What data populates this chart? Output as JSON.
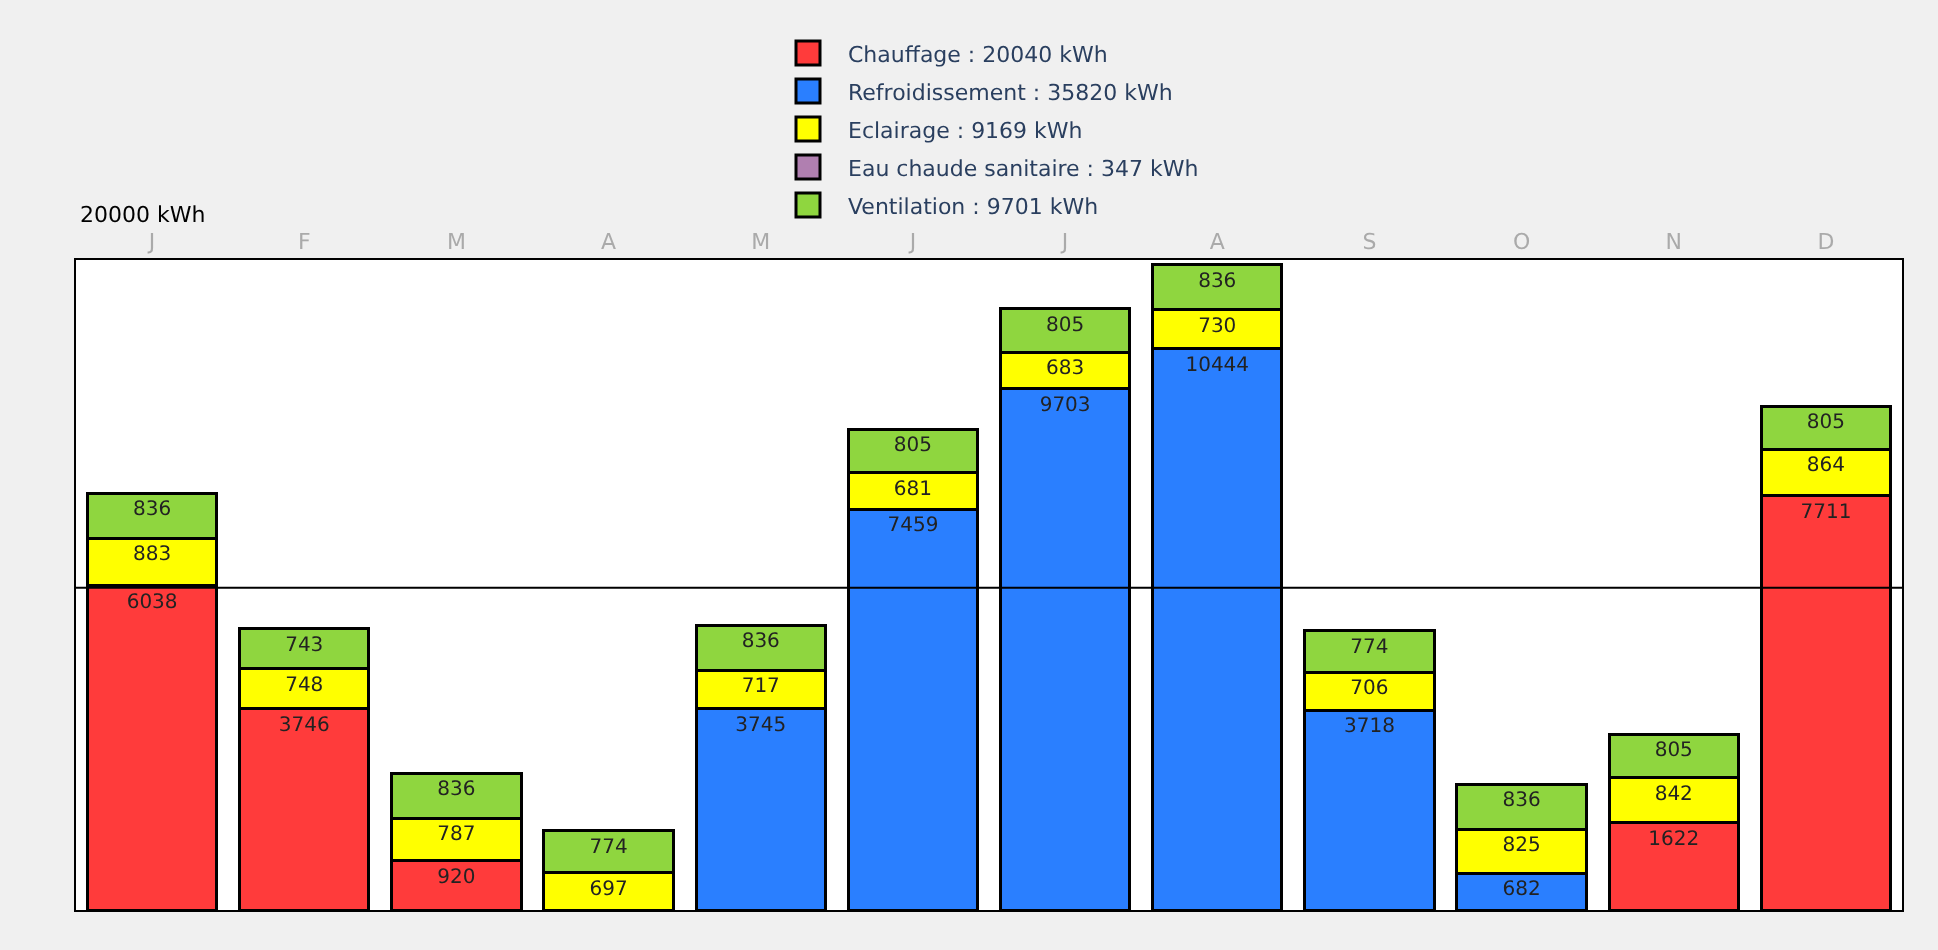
{
  "chart_data": {
    "type": "bar",
    "stacked": true,
    "categories": [
      "J",
      "F",
      "M",
      "A",
      "M",
      "J",
      "J",
      "A",
      "S",
      "O",
      "N",
      "D"
    ],
    "series": [
      {
        "name": "Chauffage : 20040 kWh",
        "color": "#ff3b3b",
        "values": [
          6038,
          3746,
          920,
          null,
          null,
          null,
          null,
          null,
          null,
          null,
          1622,
          7711
        ]
      },
      {
        "name": "Refroidissement : 35820 kWh",
        "color": "#2a7fff",
        "values": [
          null,
          null,
          null,
          null,
          3745,
          7459,
          9703,
          10444,
          3718,
          682,
          null,
          null
        ]
      },
      {
        "name": "Eclairage : 9169 kWh",
        "color": "#ffff00",
        "values": [
          883,
          748,
          787,
          697,
          717,
          681,
          683,
          730,
          706,
          825,
          842,
          864
        ]
      },
      {
        "name": "Eau chaude sanitaire : 347 kWh",
        "color": "#b07fb0",
        "values": [
          null,
          null,
          null,
          null,
          null,
          null,
          null,
          null,
          null,
          null,
          null,
          null
        ]
      },
      {
        "name": "Ventilation : 9701 kWh",
        "color": "#8fd63f",
        "values": [
          836,
          743,
          836,
          774,
          836,
          805,
          805,
          836,
          774,
          836,
          805,
          805
        ]
      }
    ],
    "ylim": [
      0,
      12100
    ],
    "tick_labels": "x",
    "data_labels": true,
    "legend": "top",
    "ref_lines": [
      {
        "axis": "y",
        "value": 6000,
        "color": "#000000"
      }
    ],
    "annotations": [
      "20000 kWh"
    ]
  }
}
